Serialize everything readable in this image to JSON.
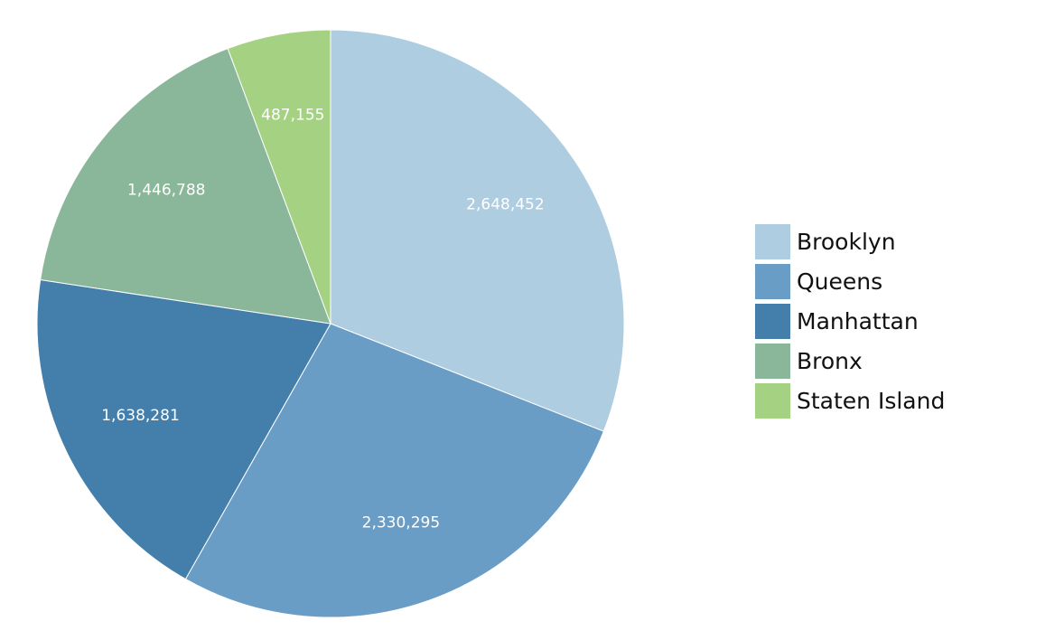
{
  "chart_data": {
    "type": "pie",
    "title": "",
    "legend_position": "right",
    "slices": [
      {
        "label": "Brooklyn",
        "value": 2648452,
        "value_label": "2,648,452",
        "color": "#afcde0"
      },
      {
        "label": "Queens",
        "value": 2330295,
        "value_label": "2,330,295",
        "color": "#6a9dc6"
      },
      {
        "label": "Manhattan",
        "value": 1638281,
        "value_label": "1,638,281",
        "color": "#447fab"
      },
      {
        "label": "Bronx",
        "value": 1446788,
        "value_label": "1,446,788",
        "color": "#8ab79a"
      },
      {
        "label": "Staten Island",
        "value": 487155,
        "value_label": "487,155",
        "color": "#a5d282"
      }
    ]
  }
}
